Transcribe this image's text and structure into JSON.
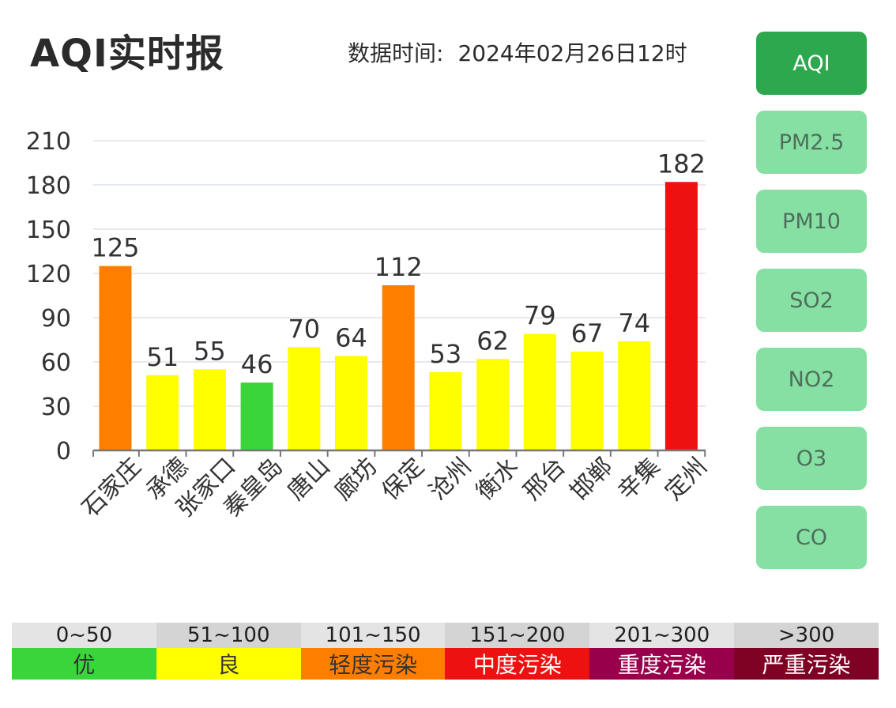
{
  "header": {
    "title": "AQI实时报",
    "time_label": "数据时间:",
    "time_value": "2024年02月26日12时"
  },
  "sidebar": {
    "items": [
      {
        "label": "AQI",
        "active": true
      },
      {
        "label": "PM2.5",
        "active": false
      },
      {
        "label": "PM10",
        "active": false
      },
      {
        "label": "SO2",
        "active": false
      },
      {
        "label": "NO2",
        "active": false
      },
      {
        "label": "O3",
        "active": false
      },
      {
        "label": "CO",
        "active": false
      }
    ]
  },
  "legend": [
    {
      "range": "0~50",
      "level": "优",
      "color": "#3ad53a",
      "text_color": "#333333"
    },
    {
      "range": "51~100",
      "level": "良",
      "color": "#ffff00",
      "text_color": "#333333"
    },
    {
      "range": "101~150",
      "level": "轻度污染",
      "color": "#ff7e00",
      "text_color": "#333333"
    },
    {
      "range": "151~200",
      "level": "中度污染",
      "color": "#ee1111",
      "text_color": "#ffffff"
    },
    {
      "range": "201~300",
      "level": "重度污染",
      "color": "#99004c",
      "text_color": "#ffffff"
    },
    {
      "range": ">300",
      "level": "严重污染",
      "color": "#7e0023",
      "text_color": "#ffffff"
    }
  ],
  "chart_data": {
    "type": "bar",
    "categories": [
      "石家庄",
      "承德",
      "张家口",
      "秦皇岛",
      "唐山",
      "廊坊",
      "保定",
      "沧州",
      "衡水",
      "邢台",
      "邯郸",
      "辛集",
      "定州"
    ],
    "values": [
      125,
      51,
      55,
      46,
      70,
      64,
      112,
      53,
      62,
      79,
      67,
      74,
      182
    ],
    "colors": [
      "#ff7e00",
      "#ffff00",
      "#ffff00",
      "#3ad53a",
      "#ffff00",
      "#ffff00",
      "#ff7e00",
      "#ffff00",
      "#ffff00",
      "#ffff00",
      "#ffff00",
      "#ffff00",
      "#ee1111"
    ],
    "ylim": [
      0,
      210
    ],
    "yticks": [
      0,
      30,
      60,
      90,
      120,
      150,
      180,
      210
    ],
    "grid": true,
    "data_labels": true
  }
}
